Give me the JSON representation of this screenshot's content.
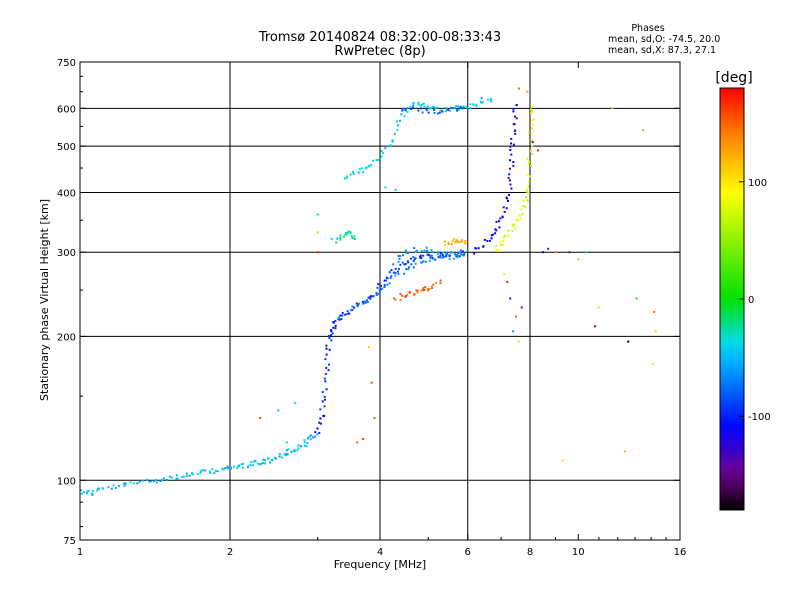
{
  "chart_data": {
    "type": "scatter",
    "title": "Tromsø 20140824 08:32:00-08:33:43",
    "subtitle": "RwPretec (8p)",
    "xlabel": "Frequency [MHz]",
    "ylabel": "Stationary phase Virtual Height [km]",
    "x_scale": "log",
    "y_scale": "log",
    "xlim": [
      1,
      16
    ],
    "ylim": [
      75,
      750
    ],
    "x_ticks": [
      1,
      2,
      4,
      6,
      8,
      10,
      16
    ],
    "x_tick_labels": [
      "1",
      "2",
      "4",
      "6",
      "8",
      "10",
      "16"
    ],
    "y_ticks": [
      75,
      100,
      200,
      300,
      400,
      500,
      600,
      750
    ],
    "y_tick_labels": [
      "75",
      "100",
      "200",
      "300",
      "400",
      "500",
      "600",
      "750"
    ],
    "x_grid": [
      2,
      4,
      6,
      8
    ],
    "y_grid": [
      100,
      200,
      300,
      400,
      500,
      600
    ],
    "grid": true,
    "stats": {
      "heading": "Phases",
      "line1": "mean, sd,O: -74.5, 20.0",
      "line2": "mean, sd,X:  87.3, 27.1"
    },
    "colorbar": {
      "label": "[deg]",
      "range": [
        -180,
        180
      ],
      "ticks": [
        100,
        0,
        -100
      ],
      "tick_labels": [
        "100",
        "0",
        "-100"
      ],
      "colors": [
        "#ff0000",
        "#ff7f00",
        "#ffff00",
        "#00e000",
        "#00ffff",
        "#0000ff",
        "#800080",
        "#000000"
      ]
    },
    "traces": [
      {
        "phase": -50,
        "points": [
          [
            1.0,
            95
          ],
          [
            1.05,
            94
          ],
          [
            1.1,
            96
          ],
          [
            1.2,
            97
          ],
          [
            1.3,
            99
          ],
          [
            1.4,
            100
          ],
          [
            1.5,
            101
          ],
          [
            1.6,
            102
          ],
          [
            1.7,
            103
          ],
          [
            1.8,
            104
          ],
          [
            1.9,
            105
          ],
          [
            2.0,
            106
          ],
          [
            2.1,
            107
          ],
          [
            2.2,
            108
          ],
          [
            2.3,
            109
          ],
          [
            2.4,
            110
          ],
          [
            2.5,
            112
          ],
          [
            2.6,
            114
          ],
          [
            2.7,
            116
          ],
          [
            2.8,
            118
          ],
          [
            2.9,
            122
          ],
          [
            3.0,
            126
          ]
        ]
      },
      {
        "phase": -100,
        "points": [
          [
            3.0,
            125
          ],
          [
            3.05,
            135
          ],
          [
            3.1,
            150
          ],
          [
            3.12,
            170
          ],
          [
            3.15,
            190
          ],
          [
            3.2,
            205
          ],
          [
            3.25,
            212
          ]
        ]
      },
      {
        "phase": -95,
        "points": [
          [
            3.2,
            212
          ],
          [
            3.4,
            222
          ],
          [
            3.6,
            232
          ],
          [
            3.8,
            240
          ],
          [
            4.0,
            255
          ],
          [
            4.2,
            270
          ],
          [
            4.4,
            282
          ],
          [
            4.6,
            290
          ],
          [
            4.8,
            292
          ],
          [
            5.0,
            294
          ],
          [
            5.3,
            295
          ],
          [
            5.6,
            296
          ],
          [
            6.0,
            298
          ]
        ]
      },
      {
        "phase": -70,
        "points": [
          [
            3.3,
            215
          ],
          [
            3.5,
            228
          ],
          [
            3.8,
            238
          ],
          [
            4.0,
            250
          ],
          [
            4.2,
            262
          ],
          [
            4.5,
            275
          ],
          [
            4.8,
            285
          ],
          [
            5.2,
            290
          ],
          [
            5.6,
            294
          ],
          [
            6.0,
            296
          ]
        ]
      },
      {
        "phase": -60,
        "points": [
          [
            4.3,
            285
          ],
          [
            4.5,
            300
          ],
          [
            4.8,
            305
          ],
          [
            5.2,
            300
          ],
          [
            5.6,
            298
          ],
          [
            6.0,
            300
          ]
        ]
      },
      {
        "phase": -40,
        "points": [
          [
            3.4,
            430
          ],
          [
            3.6,
            440
          ],
          [
            3.8,
            455
          ],
          [
            4.0,
            475
          ],
          [
            4.2,
            510
          ],
          [
            4.4,
            570
          ],
          [
            4.6,
            610
          ],
          [
            4.8,
            615
          ],
          [
            5.0,
            605
          ],
          [
            5.2,
            600
          ],
          [
            5.5,
            598
          ],
          [
            5.8,
            600
          ],
          [
            6.1,
            605
          ],
          [
            6.4,
            615
          ],
          [
            6.8,
            625
          ]
        ]
      },
      {
        "phase": -80,
        "points": [
          [
            4.4,
            600
          ],
          [
            4.8,
            595
          ],
          [
            5.2,
            590
          ],
          [
            5.6,
            595
          ],
          [
            6.0,
            600
          ]
        ]
      },
      {
        "phase": 150,
        "points": [
          [
            4.3,
            240
          ],
          [
            4.5,
            244
          ],
          [
            4.7,
            247
          ],
          [
            4.9,
            250
          ],
          [
            5.1,
            255
          ],
          [
            5.3,
            262
          ]
        ]
      },
      {
        "phase": 120,
        "points": [
          [
            5.4,
            312
          ],
          [
            5.6,
            316
          ],
          [
            5.8,
            318
          ],
          [
            6.0,
            316
          ]
        ]
      },
      {
        "phase": -115,
        "points": [
          [
            6.2,
            300
          ],
          [
            6.5,
            315
          ],
          [
            6.8,
            330
          ],
          [
            7.0,
            350
          ],
          [
            7.2,
            380
          ],
          [
            7.3,
            420
          ],
          [
            7.35,
            470
          ],
          [
            7.4,
            520
          ],
          [
            7.45,
            570
          ],
          [
            7.5,
            620
          ]
        ]
      },
      {
        "phase": 80,
        "points": [
          [
            6.8,
            300
          ],
          [
            7.0,
            315
          ],
          [
            7.3,
            335
          ],
          [
            7.6,
            350
          ],
          [
            7.8,
            370
          ],
          [
            7.9,
            400
          ],
          [
            7.95,
            450
          ],
          [
            8.0,
            500
          ],
          [
            8.05,
            560
          ],
          [
            8.1,
            620
          ]
        ]
      },
      {
        "phase": -20,
        "points": [
          [
            3.3,
            318
          ],
          [
            3.4,
            325
          ],
          [
            3.5,
            330
          ],
          [
            3.55,
            322
          ]
        ]
      }
    ],
    "scatter": [
      {
        "x": 3.0,
        "y": 360,
        "phase": -30
      },
      {
        "x": 3.0,
        "y": 330,
        "phase": 60
      },
      {
        "x": 3.0,
        "y": 300,
        "phase": 170
      },
      {
        "x": 3.2,
        "y": 320,
        "phase": -40
      },
      {
        "x": 2.3,
        "y": 135,
        "phase": 160
      },
      {
        "x": 2.5,
        "y": 140,
        "phase": -50
      },
      {
        "x": 2.7,
        "y": 145,
        "phase": -40
      },
      {
        "x": 2.6,
        "y": 120,
        "phase": -30
      },
      {
        "x": 3.6,
        "y": 120,
        "phase": 150
      },
      {
        "x": 3.7,
        "y": 122,
        "phase": 160
      },
      {
        "x": 3.85,
        "y": 160,
        "phase": 160
      },
      {
        "x": 3.9,
        "y": 135,
        "phase": 150
      },
      {
        "x": 3.8,
        "y": 190,
        "phase": 110
      },
      {
        "x": 4.1,
        "y": 410,
        "phase": -40
      },
      {
        "x": 4.3,
        "y": 405,
        "phase": -30
      },
      {
        "x": 7.2,
        "y": 260,
        "phase": 170
      },
      {
        "x": 7.3,
        "y": 240,
        "phase": -100
      },
      {
        "x": 7.5,
        "y": 220,
        "phase": 150
      },
      {
        "x": 7.4,
        "y": 205,
        "phase": -60
      },
      {
        "x": 7.6,
        "y": 195,
        "phase": 100
      },
      {
        "x": 7.7,
        "y": 230,
        "phase": -100
      },
      {
        "x": 7.1,
        "y": 270,
        "phase": 80
      },
      {
        "x": 8.3,
        "y": 490,
        "phase": 170
      },
      {
        "x": 8.5,
        "y": 300,
        "phase": -110
      },
      {
        "x": 8.7,
        "y": 305,
        "phase": -140
      },
      {
        "x": 9.0,
        "y": 300,
        "phase": 140
      },
      {
        "x": 9.3,
        "y": 110,
        "phase": 110
      },
      {
        "x": 9.6,
        "y": 300,
        "phase": -140
      },
      {
        "x": 10.0,
        "y": 290,
        "phase": 120
      },
      {
        "x": 10.4,
        "y": 300,
        "phase": -20
      },
      {
        "x": 10.8,
        "y": 210,
        "phase": -140
      },
      {
        "x": 11.0,
        "y": 230,
        "phase": 100
      },
      {
        "x": 11.7,
        "y": 600,
        "phase": 60
      },
      {
        "x": 12.6,
        "y": 195,
        "phase": -180
      },
      {
        "x": 12.4,
        "y": 115,
        "phase": 120
      },
      {
        "x": 13.1,
        "y": 240,
        "phase": -10
      },
      {
        "x": 13.5,
        "y": 540,
        "phase": 130
      },
      {
        "x": 14.2,
        "y": 225,
        "phase": 150
      },
      {
        "x": 14.3,
        "y": 205,
        "phase": 110
      },
      {
        "x": 14.1,
        "y": 175,
        "phase": 100
      },
      {
        "x": 7.9,
        "y": 650,
        "phase": 130
      },
      {
        "x": 7.6,
        "y": 660,
        "phase": 150
      },
      {
        "x": 6.4,
        "y": 630,
        "phase": -60
      },
      {
        "x": 8.1,
        "y": 510,
        "phase": -140
      }
    ]
  }
}
